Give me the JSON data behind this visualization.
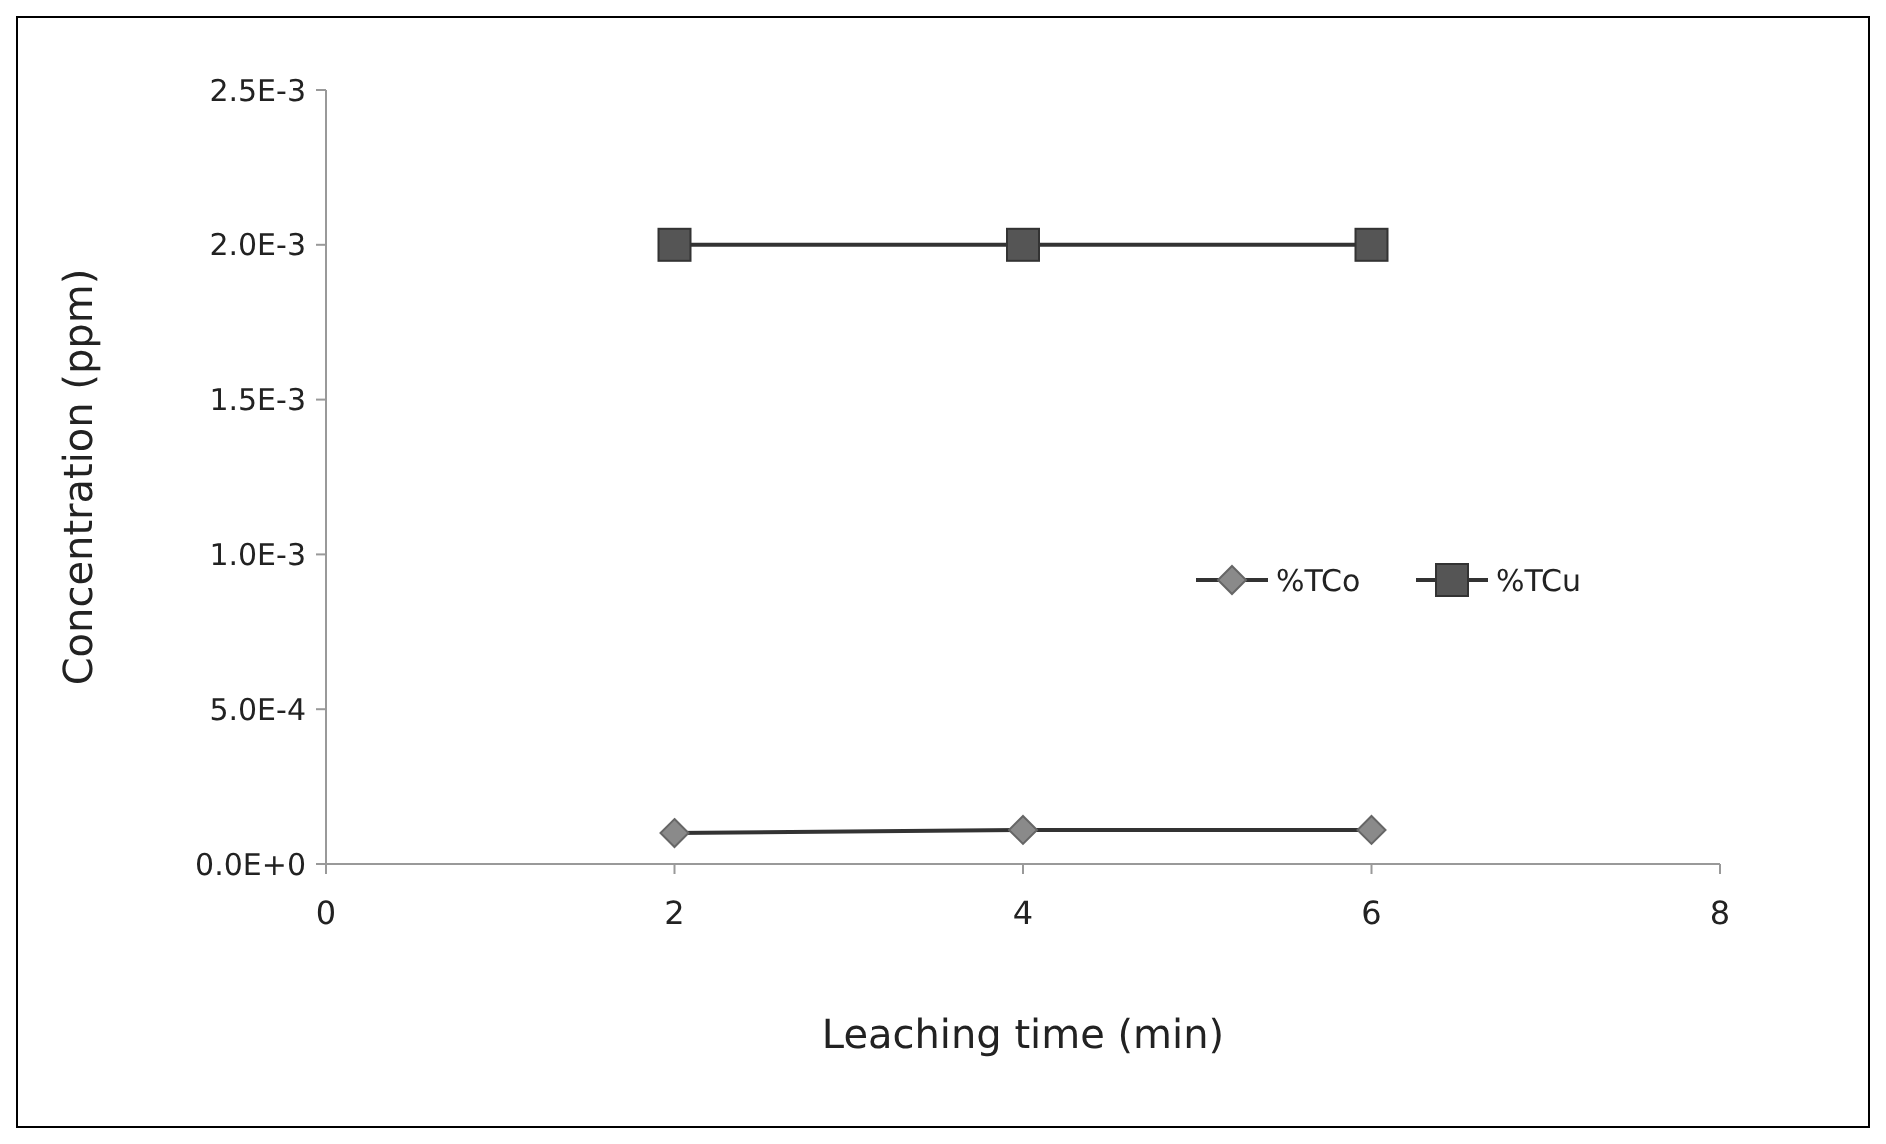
{
  "chart_data": {
    "type": "line",
    "xlabel": "Leaching time (min)",
    "ylabel": "Concentration (ppm)",
    "x": [
      2,
      4,
      6
    ],
    "series": [
      {
        "name": "%TCo",
        "color": "#8a8a8a",
        "marker": "diamond",
        "values": [
          0.0001,
          0.00011,
          0.00011
        ]
      },
      {
        "name": "%TCu",
        "color": "#555555",
        "marker": "square",
        "values": [
          0.002,
          0.002,
          0.002
        ]
      }
    ],
    "xlim": [
      0,
      8
    ],
    "xticks": [
      0,
      2,
      4,
      6,
      8
    ],
    "ylim": [
      0,
      0.0025
    ],
    "yticks": [
      {
        "value": 0,
        "label": "0.0E+0"
      },
      {
        "value": 0.0005,
        "label": "5.0E-4"
      },
      {
        "value": 0.001,
        "label": "1.0E-3"
      },
      {
        "value": 0.0015,
        "label": "1.5E-3"
      },
      {
        "value": 0.002,
        "label": "2.0E-3"
      },
      {
        "value": 0.0025,
        "label": "2.5E-3"
      }
    ],
    "legend": "right",
    "grid": false,
    "line_style": "solid"
  }
}
